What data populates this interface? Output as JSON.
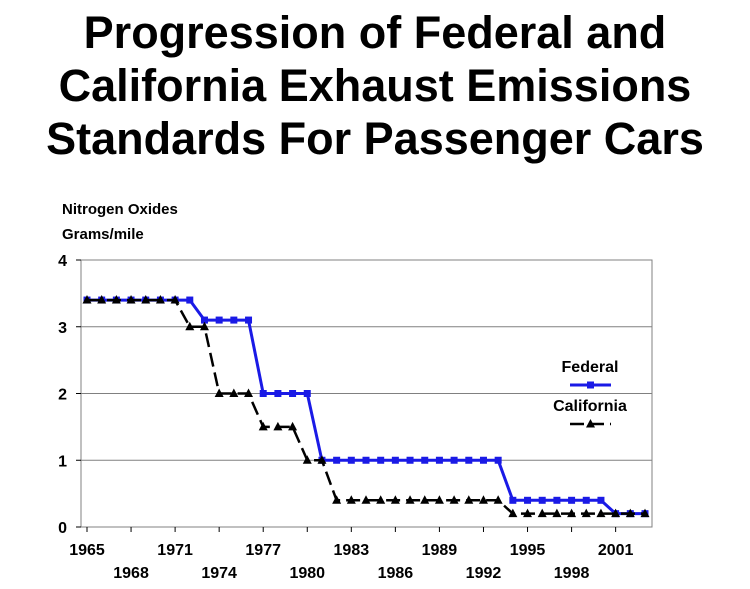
{
  "chart_data": {
    "type": "line",
    "title_lines": [
      "Progression of Federal and",
      "California Exhaust Emissions",
      "Standards For Passenger Cars"
    ],
    "ylabel_lines": [
      "Nitrogen Oxides",
      "Grams/mile"
    ],
    "xlabel": "",
    "x_ticks": [
      1965,
      1968,
      1971,
      1974,
      1977,
      1980,
      1983,
      1986,
      1989,
      1992,
      1995,
      1998,
      2001
    ],
    "y_ticks": [
      0,
      1,
      2,
      3,
      4
    ],
    "xlim": [
      1965,
      2003
    ],
    "ylim": [
      0,
      4
    ],
    "grid": "horizontal",
    "legend_position": "right",
    "series": [
      {
        "name": "Federal",
        "color": "#1a1ae6",
        "marker": "square",
        "points": [
          [
            1965,
            3.4
          ],
          [
            1966,
            3.4
          ],
          [
            1967,
            3.4
          ],
          [
            1968,
            3.4
          ],
          [
            1969,
            3.4
          ],
          [
            1970,
            3.4
          ],
          [
            1971,
            3.4
          ],
          [
            1972,
            3.4
          ],
          [
            1973,
            3.1
          ],
          [
            1974,
            3.1
          ],
          [
            1975,
            3.1
          ],
          [
            1976,
            3.1
          ],
          [
            1977,
            2.0
          ],
          [
            1978,
            2.0
          ],
          [
            1979,
            2.0
          ],
          [
            1980,
            2.0
          ],
          [
            1981,
            1.0
          ],
          [
            1982,
            1.0
          ],
          [
            1983,
            1.0
          ],
          [
            1984,
            1.0
          ],
          [
            1985,
            1.0
          ],
          [
            1986,
            1.0
          ],
          [
            1987,
            1.0
          ],
          [
            1988,
            1.0
          ],
          [
            1989,
            1.0
          ],
          [
            1990,
            1.0
          ],
          [
            1991,
            1.0
          ],
          [
            1992,
            1.0
          ],
          [
            1993,
            1.0
          ],
          [
            1994,
            0.4
          ],
          [
            1995,
            0.4
          ],
          [
            1996,
            0.4
          ],
          [
            1997,
            0.4
          ],
          [
            1998,
            0.4
          ],
          [
            1999,
            0.4
          ],
          [
            2000,
            0.4
          ],
          [
            2001,
            0.2
          ],
          [
            2002,
            0.2
          ],
          [
            2003,
            0.2
          ]
        ]
      },
      {
        "name": "California",
        "color": "#000000",
        "marker": "triangle",
        "points": [
          [
            1965,
            3.4
          ],
          [
            1966,
            3.4
          ],
          [
            1967,
            3.4
          ],
          [
            1968,
            3.4
          ],
          [
            1969,
            3.4
          ],
          [
            1970,
            3.4
          ],
          [
            1971,
            3.4
          ],
          [
            1972,
            3.0
          ],
          [
            1973,
            3.0
          ],
          [
            1974,
            2.0
          ],
          [
            1975,
            2.0
          ],
          [
            1976,
            2.0
          ],
          [
            1977,
            1.5
          ],
          [
            1978,
            1.5
          ],
          [
            1979,
            1.5
          ],
          [
            1980,
            1.0
          ],
          [
            1981,
            1.0
          ],
          [
            1982,
            0.4
          ],
          [
            1983,
            0.4
          ],
          [
            1984,
            0.4
          ],
          [
            1985,
            0.4
          ],
          [
            1986,
            0.4
          ],
          [
            1987,
            0.4
          ],
          [
            1988,
            0.4
          ],
          [
            1989,
            0.4
          ],
          [
            1990,
            0.4
          ],
          [
            1991,
            0.4
          ],
          [
            1992,
            0.4
          ],
          [
            1993,
            0.4
          ],
          [
            1994,
            0.2
          ],
          [
            1995,
            0.2
          ],
          [
            1996,
            0.2
          ],
          [
            1997,
            0.2
          ],
          [
            1998,
            0.2
          ],
          [
            1999,
            0.2
          ],
          [
            2000,
            0.2
          ],
          [
            2001,
            0.2
          ],
          [
            2002,
            0.2
          ],
          [
            2003,
            0.2
          ]
        ]
      }
    ]
  }
}
